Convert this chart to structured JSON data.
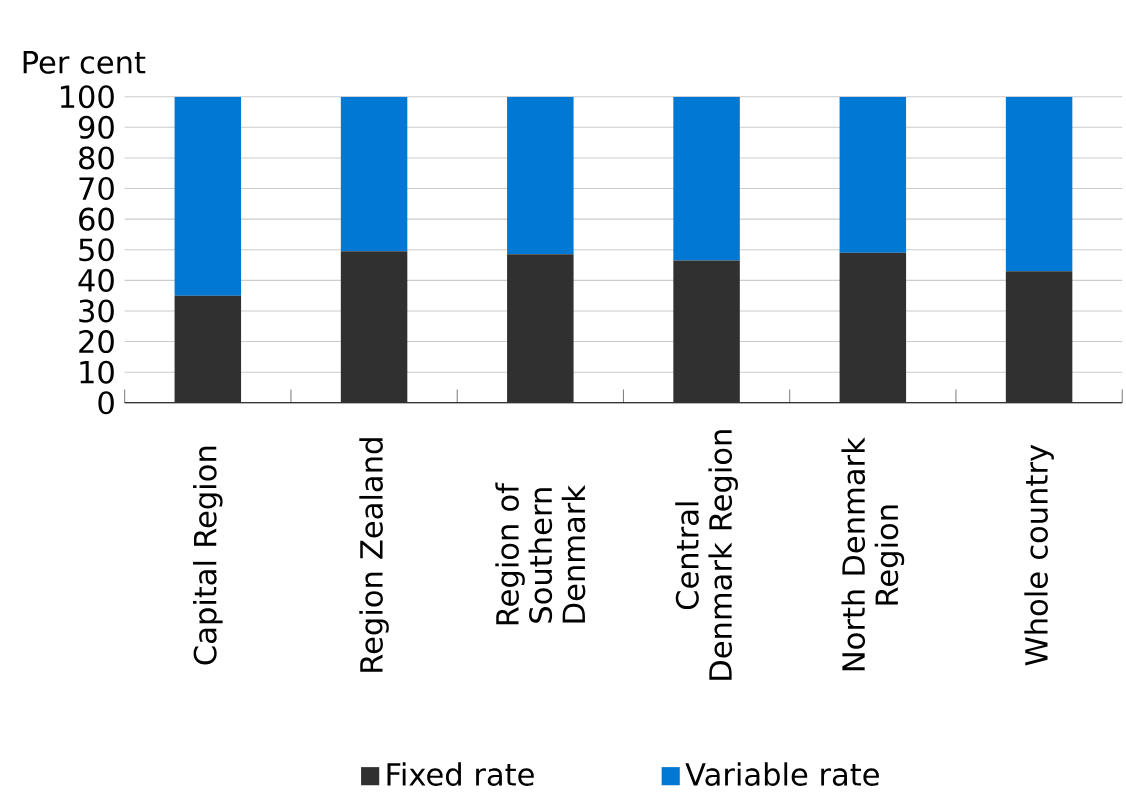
{
  "chart_data": {
    "type": "bar",
    "stacked": true,
    "ylabel": "Per cent",
    "categories": [
      "Capital Region",
      "Region Zealand",
      "Region of Southern Denmark",
      "Central Denmark Region",
      "North Denmark Region",
      "Whole country"
    ],
    "series": [
      {
        "name": "Fixed rate",
        "color": "#303030",
        "values": [
          35,
          49.5,
          48.5,
          46.5,
          49,
          43
        ]
      },
      {
        "name": "Variable rate",
        "color": "#0078d4",
        "values": [
          65,
          50.5,
          51.5,
          53.5,
          51,
          57
        ]
      }
    ],
    "ylim": [
      0,
      100
    ],
    "yticks": [
      0,
      10,
      20,
      30,
      40,
      50,
      60,
      70,
      80,
      90,
      100
    ],
    "grid": "y",
    "legend": "bottom"
  }
}
